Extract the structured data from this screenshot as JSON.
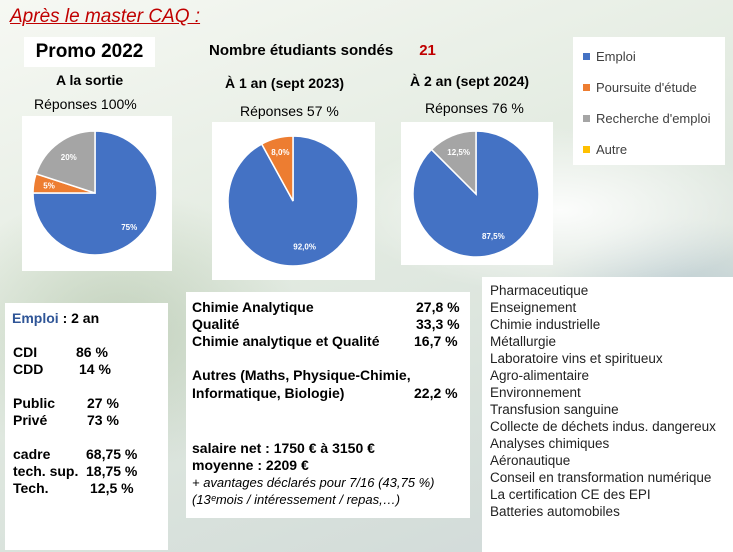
{
  "header": {
    "title": "Après le master CAQ  :",
    "promo": "Promo 2022",
    "surveyed_label": "Nombre étudiants sondés",
    "surveyed_count": "21"
  },
  "colors": {
    "emploi": "#4472C4",
    "poursuite": "#ED7D31",
    "recherche": "#A5A5A5",
    "autre": "#FFC000",
    "accent_red": "#C00000"
  },
  "chart_data": [
    {
      "type": "pie",
      "title": "A la sortie",
      "subtitle": "Réponses  100%",
      "slices": [
        {
          "name": "Emploi",
          "value": 75,
          "label": "75%"
        },
        {
          "name": "Poursuite d'étude",
          "value": 5,
          "label": "5%"
        },
        {
          "name": "Recherche d'emploi",
          "value": 20,
          "label": "20%"
        },
        {
          "name": "Autre",
          "value": 0,
          "label": ""
        }
      ]
    },
    {
      "type": "pie",
      "title": "À 1 an (sept 2023)",
      "subtitle": "Réponses 57 %",
      "slices": [
        {
          "name": "Emploi",
          "value": 92.0,
          "label": "92,0%"
        },
        {
          "name": "Poursuite d'étude",
          "value": 8.0,
          "label": "8,0%"
        },
        {
          "name": "Recherche d'emploi",
          "value": 0,
          "label": ""
        },
        {
          "name": "Autre",
          "value": 0,
          "label": ""
        }
      ]
    },
    {
      "type": "pie",
      "title": "À 2 an (sept 2024)",
      "subtitle": "Réponses   76 %",
      "slices": [
        {
          "name": "Emploi",
          "value": 87.5,
          "label": "87,5%"
        },
        {
          "name": "Poursuite d'étude",
          "value": 0,
          "label": ""
        },
        {
          "name": "Recherche d'emploi",
          "value": 12.5,
          "label": "12,5%"
        },
        {
          "name": "Autre",
          "value": 0,
          "label": ""
        }
      ]
    }
  ],
  "legend": [
    {
      "label": "Emploi",
      "color": "#4472C4"
    },
    {
      "label": "Poursuite d'étude",
      "color": "#ED7D31"
    },
    {
      "label": "Recherche d'emploi",
      "color": "#A5A5A5"
    },
    {
      "label": "Autre",
      "color": "#FFC000"
    }
  ],
  "employment": {
    "title": "Emploi",
    "subtitle": ": 2 an",
    "rows": [
      {
        "label": "CDI",
        "value": "86 %"
      },
      {
        "label": "CDD",
        "value": "14 %"
      },
      {
        "label": "Public",
        "value": "27 %"
      },
      {
        "label": "Privé",
        "value": "73 %"
      },
      {
        "label": "cadre",
        "value": "68,75 %"
      },
      {
        "label": "tech. sup.",
        "value": "18,75 %"
      },
      {
        "label": "Tech.",
        "value": "12,5 %"
      }
    ]
  },
  "fields": {
    "items": [
      {
        "label": "Chimie Analytique",
        "value": "27,8 %"
      },
      {
        "label": "Qualité",
        "value": "33,3 %"
      },
      {
        "label": "Chimie analytique et Qualité",
        "value": "16,7 %"
      }
    ],
    "other_line1": "Autres (Maths, Physique-Chimie,",
    "other_line2": "Informatique, Biologie)",
    "other_value": "22,2 %",
    "salary_line1": "salaire net : 1750 € à 3150 €",
    "salary_line2": "moyenne : 2209 €",
    "benefits_line1": "+ avantages déclarés pour 7/16 (43,75 %)",
    "benefits_line2": "(13ᵉmois / intéressement / repas,…)"
  },
  "sectors": [
    "Pharmaceutique",
    "Enseignement",
    "Chimie industrielle",
    "Métallurgie",
    "Laboratoire vins et spiritueux",
    "Agro-alimentaire",
    "Environnement",
    "Transfusion sanguine",
    "Collecte de déchets indus. dangereux",
    "Analyses chimiques",
    "Aéronautique",
    "Conseil en transformation numérique",
    "La certification CE des EPI",
    "Batteries automobiles"
  ]
}
